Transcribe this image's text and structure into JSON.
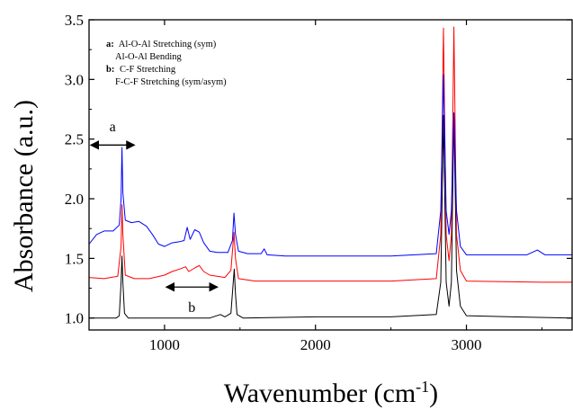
{
  "chart_data": {
    "type": "line",
    "xlabel_main": "Wavenumber (cm",
    "xlabel_sup": "-1",
    "xlabel_close": ")",
    "ylabel": "Absorbance (a.u.)",
    "xlim": [
      500,
      3700
    ],
    "ylim": [
      0.9,
      3.5
    ],
    "xticks": [
      1000,
      2000,
      3000
    ],
    "yticks": [
      1.0,
      1.5,
      2.0,
      2.5,
      3.0,
      3.5
    ],
    "xtick_labels": [
      "1000",
      "2000",
      "3000"
    ],
    "ytick_labels": [
      "1.0",
      "1.5",
      "2.0",
      "2.5",
      "3.0",
      "3.5"
    ],
    "legend_box": {
      "a_key": "a:",
      "a_line1": "Al-O-Al Stretching (sym)",
      "a_line2": "Al-O-Al Bending",
      "b_key": "b:",
      "b_line1": "C-F Stretching",
      "b_line2": "F-C-F Stretching (sym/asym)"
    },
    "annotations": [
      {
        "label": "a",
        "x_start": 500,
        "x_end": 800
      },
      {
        "label": "b",
        "x_start": 1000,
        "x_end": 1350
      }
    ],
    "series": [
      {
        "color": "#000000",
        "points": [
          [
            500,
            1.0
          ],
          [
            600,
            1.0
          ],
          [
            680,
            1.0
          ],
          [
            700,
            1.02
          ],
          [
            712,
            1.3
          ],
          [
            718,
            1.52
          ],
          [
            724,
            1.3
          ],
          [
            735,
            1.04
          ],
          [
            760,
            1.0
          ],
          [
            900,
            1.0
          ],
          [
            1100,
            1.0
          ],
          [
            1300,
            1.0
          ],
          [
            1370,
            1.03
          ],
          [
            1400,
            1.01
          ],
          [
            1440,
            1.04
          ],
          [
            1455,
            1.3
          ],
          [
            1462,
            1.41
          ],
          [
            1470,
            1.2
          ],
          [
            1480,
            1.03
          ],
          [
            1520,
            1.0
          ],
          [
            2000,
            1.01
          ],
          [
            2500,
            1.01
          ],
          [
            2800,
            1.03
          ],
          [
            2830,
            1.3
          ],
          [
            2848,
            2.7
          ],
          [
            2866,
            1.3
          ],
          [
            2885,
            1.1
          ],
          [
            2900,
            1.3
          ],
          [
            2917,
            2.72
          ],
          [
            2934,
            1.4
          ],
          [
            2960,
            1.1
          ],
          [
            3000,
            1.02
          ],
          [
            3300,
            1.01
          ],
          [
            3700,
            1.0
          ]
        ]
      },
      {
        "color": "#ff0000",
        "points": [
          [
            500,
            1.34
          ],
          [
            600,
            1.33
          ],
          [
            690,
            1.35
          ],
          [
            712,
            1.6
          ],
          [
            718,
            1.95
          ],
          [
            724,
            1.7
          ],
          [
            740,
            1.36
          ],
          [
            800,
            1.33
          ],
          [
            900,
            1.33
          ],
          [
            1000,
            1.36
          ],
          [
            1050,
            1.39
          ],
          [
            1100,
            1.41
          ],
          [
            1140,
            1.43
          ],
          [
            1160,
            1.39
          ],
          [
            1200,
            1.42
          ],
          [
            1230,
            1.44
          ],
          [
            1260,
            1.39
          ],
          [
            1300,
            1.36
          ],
          [
            1400,
            1.34
          ],
          [
            1440,
            1.4
          ],
          [
            1460,
            1.72
          ],
          [
            1470,
            1.5
          ],
          [
            1490,
            1.33
          ],
          [
            1600,
            1.31
          ],
          [
            2000,
            1.31
          ],
          [
            2500,
            1.31
          ],
          [
            2800,
            1.33
          ],
          [
            2830,
            1.7
          ],
          [
            2848,
            3.43
          ],
          [
            2866,
            1.7
          ],
          [
            2885,
            1.48
          ],
          [
            2900,
            1.7
          ],
          [
            2917,
            3.44
          ],
          [
            2934,
            1.7
          ],
          [
            2960,
            1.4
          ],
          [
            3000,
            1.31
          ],
          [
            3500,
            1.3
          ],
          [
            3700,
            1.3
          ]
        ]
      },
      {
        "color": "#0000ff",
        "points": [
          [
            500,
            1.62
          ],
          [
            550,
            1.7
          ],
          [
            600,
            1.73
          ],
          [
            660,
            1.73
          ],
          [
            700,
            1.78
          ],
          [
            712,
            2.0
          ],
          [
            718,
            2.43
          ],
          [
            724,
            2.05
          ],
          [
            740,
            1.82
          ],
          [
            780,
            1.8
          ],
          [
            830,
            1.81
          ],
          [
            880,
            1.77
          ],
          [
            920,
            1.7
          ],
          [
            960,
            1.62
          ],
          [
            1000,
            1.6
          ],
          [
            1050,
            1.63
          ],
          [
            1100,
            1.64
          ],
          [
            1130,
            1.65
          ],
          [
            1150,
            1.76
          ],
          [
            1170,
            1.66
          ],
          [
            1200,
            1.74
          ],
          [
            1230,
            1.72
          ],
          [
            1260,
            1.63
          ],
          [
            1300,
            1.56
          ],
          [
            1350,
            1.55
          ],
          [
            1420,
            1.55
          ],
          [
            1450,
            1.65
          ],
          [
            1460,
            1.88
          ],
          [
            1470,
            1.7
          ],
          [
            1490,
            1.56
          ],
          [
            1550,
            1.54
          ],
          [
            1640,
            1.54
          ],
          [
            1660,
            1.58
          ],
          [
            1680,
            1.53
          ],
          [
            1800,
            1.52
          ],
          [
            2000,
            1.52
          ],
          [
            2500,
            1.52
          ],
          [
            2800,
            1.54
          ],
          [
            2830,
            1.9
          ],
          [
            2848,
            3.04
          ],
          [
            2866,
            1.9
          ],
          [
            2885,
            1.7
          ],
          [
            2900,
            1.9
          ],
          [
            2917,
            2.72
          ],
          [
            2934,
            1.9
          ],
          [
            2960,
            1.6
          ],
          [
            3000,
            1.53
          ],
          [
            3400,
            1.53
          ],
          [
            3470,
            1.57
          ],
          [
            3520,
            1.53
          ],
          [
            3700,
            1.53
          ]
        ]
      }
    ]
  }
}
